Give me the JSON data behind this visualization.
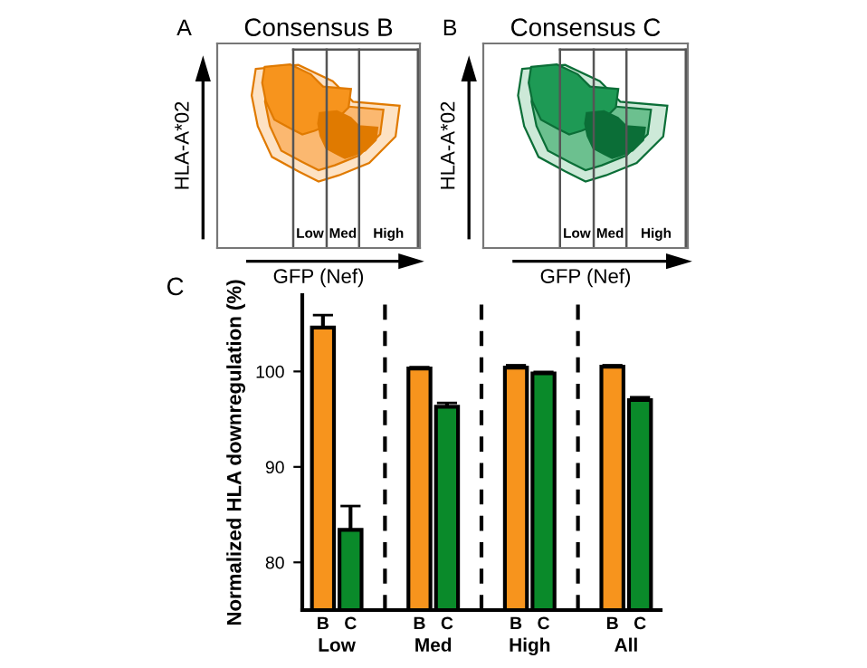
{
  "chart_data": [
    {
      "type": "other",
      "title": "Consensus B",
      "xlabel": "GFP (Nef)",
      "ylabel": "HLA-A*02",
      "annotations": [
        "A",
        "Low",
        "Med",
        "High"
      ]
    },
    {
      "type": "other",
      "title": "Consensus C",
      "xlabel": "GFP (Nef)",
      "ylabel": "HLA-A*02",
      "annotations": [
        "B",
        "Low",
        "Med",
        "High"
      ]
    },
    {
      "type": "bar",
      "ylabel": "Normalized HLA downregulation (%)",
      "annotations": [
        "C"
      ],
      "categories": [
        "Low",
        "Med",
        "High",
        "All"
      ],
      "series": [
        {
          "name": "B",
          "color": "#f7941d",
          "values": [
            104.6,
            100.3,
            100.4,
            100.5
          ],
          "errors": [
            [
              104.6,
              105.9
            ],
            [
              100.3,
              100.45
            ],
            [
              100.4,
              100.65
            ],
            [
              100.5,
              100.65
            ]
          ]
        },
        {
          "name": "C",
          "color": "#0a8a2a",
          "values": [
            83.4,
            96.3,
            99.8,
            97.0
          ],
          "errors": [
            [
              83.4,
              85.9
            ],
            [
              96.3,
              96.7
            ],
            [
              99.8,
              99.95
            ],
            [
              97.0,
              97.3
            ]
          ]
        }
      ],
      "ylim": [
        75,
        108
      ],
      "yticks": [
        80,
        90,
        100
      ],
      "grid": false,
      "legend": false
    }
  ]
}
